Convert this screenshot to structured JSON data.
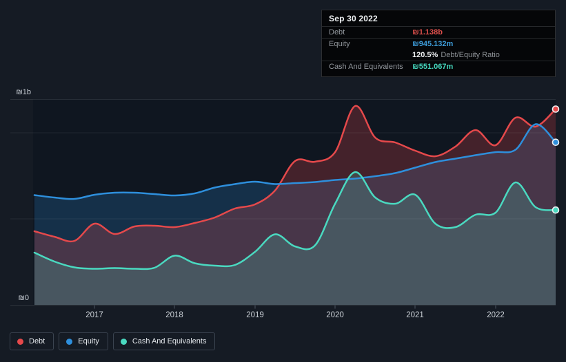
{
  "tooltip": {
    "date": "Sep 30 2022",
    "debt_label": "Debt",
    "debt_value": "₪1.138b",
    "equity_label": "Equity",
    "equity_value": "₪945.132m",
    "ratio_value": "120.5%",
    "ratio_label": "Debt/Equity Ratio",
    "cash_label": "Cash And Equivalents",
    "cash_value": "₪551.067m"
  },
  "axis": {
    "y_top_label": "₪1b",
    "y_bottom_label": "₪0",
    "years": [
      "2017",
      "2018",
      "2019",
      "2020",
      "2021",
      "2022"
    ]
  },
  "legend": {
    "items": [
      {
        "label": "Debt",
        "color": "#e5494b"
      },
      {
        "label": "Equity",
        "color": "#2e8fdc"
      },
      {
        "label": "Cash And Equivalents",
        "color": "#4ad9c0"
      }
    ]
  },
  "colors": {
    "background": "#151b24",
    "plot_background": "#0f1620",
    "debt": "#e5494b",
    "equity": "#2e8fdc",
    "cash": "#4ad9c0",
    "gridline": "#2b3440",
    "axis_text": "#c9cfd6"
  },
  "chart_data": {
    "type": "area",
    "x_unit": "decimal_year",
    "x": [
      2016.25,
      2016.5,
      2016.75,
      2017,
      2017.25,
      2017.5,
      2017.75,
      2018,
      2018.25,
      2018.5,
      2018.75,
      2019,
      2019.25,
      2019.5,
      2019.75,
      2020,
      2020.25,
      2020.5,
      2020.75,
      2021,
      2021.25,
      2021.5,
      2021.75,
      2022,
      2022.25,
      2022.5,
      2022.75
    ],
    "series": [
      {
        "key": "debt",
        "name": "Debt",
        "color": "#e5494b",
        "unit": "₪ millions",
        "values": [
          428,
          396,
          372,
          472,
          412,
          456,
          460,
          452,
          476,
          508,
          560,
          584,
          664,
          836,
          832,
          888,
          1156,
          972,
          944,
          896,
          864,
          920,
          1016,
          928,
          1088,
          1036,
          1138
        ]
      },
      {
        "key": "equity",
        "name": "Equity",
        "color": "#2e8fdc",
        "unit": "₪ millions",
        "values": [
          638,
          624,
          616,
          640,
          652,
          652,
          644,
          636,
          648,
          682,
          702,
          716,
          702,
          708,
          714,
          726,
          734,
          748,
          766,
          798,
          830,
          850,
          870,
          888,
          902,
          1050,
          945.132
        ]
      },
      {
        "key": "cash",
        "name": "Cash And Equivalents",
        "color": "#4ad9c0",
        "unit": "₪ millions",
        "values": [
          304,
          252,
          218,
          210,
          214,
          210,
          216,
          286,
          242,
          228,
          232,
          308,
          410,
          340,
          346,
          588,
          772,
          624,
          588,
          640,
          472,
          452,
          524,
          536,
          712,
          568,
          551.067
        ]
      }
    ],
    "ylim": [
      0,
      1196
    ],
    "y_gridlines_m": [
      0,
      500,
      1000
    ],
    "grid": "horizontal",
    "legend_position": "bottom-left"
  }
}
